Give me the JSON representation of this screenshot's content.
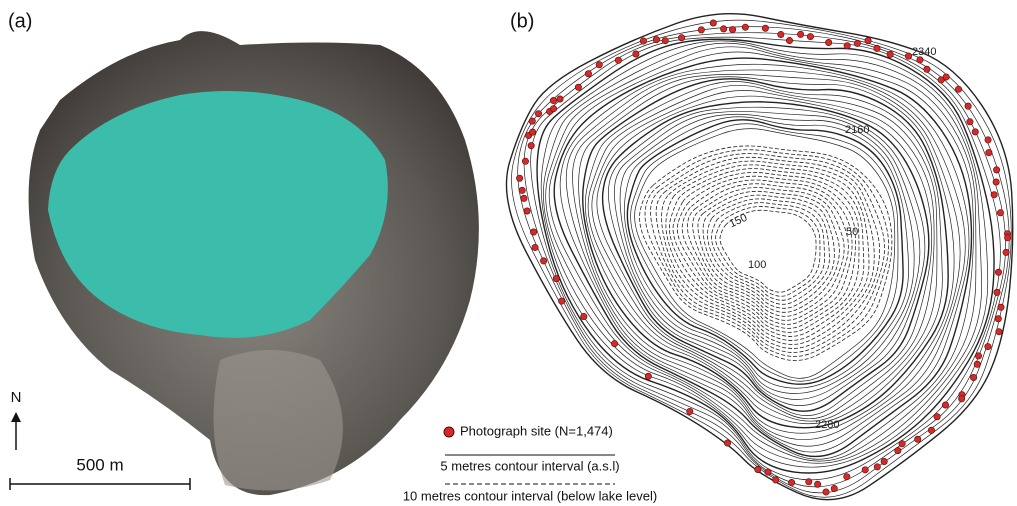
{
  "panels": [
    {
      "label": "(a)",
      "north": "N",
      "scale": "500 m"
    },
    {
      "label": "(b)",
      "contour_labels": [
        "2340",
        "2160",
        "150",
        "50",
        "100",
        "2280"
      ]
    }
  ],
  "legend": {
    "site": "Photograph site (N=1,474)",
    "solid": "5 metres contour interval (a.s.l)",
    "dashed": "10 metres contour interval (below lake level)"
  }
}
